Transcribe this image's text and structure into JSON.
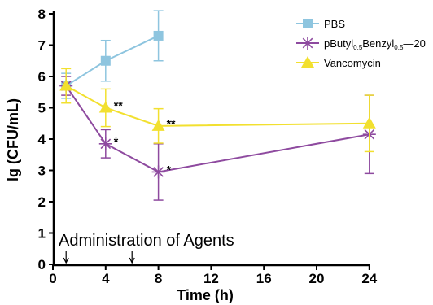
{
  "chart_data": {
    "type": "line",
    "xlabel": "Time (h)",
    "ylabel": "lg (CFU/mL)",
    "xlim": [
      0,
      25
    ],
    "ylim": [
      0,
      8.2
    ],
    "xticks": [
      0,
      4,
      8,
      12,
      16,
      20,
      24
    ],
    "yticks": [
      0,
      1,
      2,
      3,
      4,
      5,
      6,
      7,
      8
    ],
    "legend_position": "top-right",
    "series": [
      {
        "name": "PBS",
        "color": "#8ec5df",
        "marker": "square",
        "x": [
          1,
          4,
          8
        ],
        "y": [
          5.7,
          6.5,
          7.3
        ],
        "err": [
          0.4,
          0.65,
          0.8
        ]
      },
      {
        "name_parts": [
          {
            "text": "pButyl"
          },
          {
            "text": "0.5",
            "sub": true
          },
          {
            "text": "Benzyl"
          },
          {
            "text": "0.5",
            "sub": true
          },
          {
            "text": "—20"
          }
        ],
        "color": "#8e4a9f",
        "marker": "asterisk",
        "x": [
          1,
          4,
          8,
          24
        ],
        "y": [
          5.7,
          3.85,
          2.95,
          4.15
        ],
        "err": [
          0.3,
          0.45,
          0.9,
          1.25
        ]
      },
      {
        "name": "Vancomycin",
        "color": "#f2e02f",
        "marker": "triangle",
        "x": [
          1,
          4,
          8,
          24
        ],
        "y": [
          5.7,
          5.0,
          4.42,
          4.5
        ],
        "err": [
          0.55,
          0.6,
          0.55,
          0.9
        ]
      }
    ],
    "significance": [
      {
        "x": 4,
        "y": 5.0,
        "text": "**"
      },
      {
        "x": 4,
        "y": 3.85,
        "text": "*"
      },
      {
        "x": 8,
        "y": 4.42,
        "text": "**"
      },
      {
        "x": 8,
        "y": 2.95,
        "text": "*"
      }
    ],
    "annotation": {
      "text": "Administration of Agents",
      "arrows_at_x": [
        1,
        6
      ]
    }
  }
}
